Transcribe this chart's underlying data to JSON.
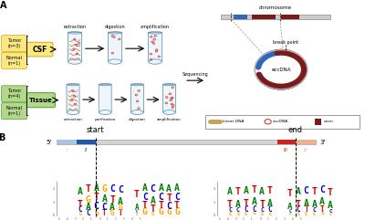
{
  "panel_A_label": "A",
  "panel_B_label": "B",
  "csf_label": "CSF",
  "tissue_label": "Tissue",
  "tumor_csf": "Tumor\n(n=3)",
  "normal_csf": "Normal\n(n=1)",
  "tumor_tissue": "Tumor\n(n=4)",
  "normal_tissue": "Normal\n(n=1)",
  "steps_csf": [
    "extraction",
    "digestion",
    "amplification"
  ],
  "steps_tissue": [
    "extraction",
    "purification",
    "digestion",
    "amplification"
  ],
  "sequencing_label": "Sequencing",
  "chromosome_label": "chromosome",
  "break_point_label": "break point",
  "eccdna_label": "eccDNA",
  "legend_items": [
    "linear DNA",
    "eccDNA",
    "exon"
  ],
  "start_label": "start",
  "end_label": "end",
  "five_prime": "5'",
  "three_prime": "3'",
  "region_I": "I",
  "region_II": "II",
  "region_III": "III",
  "region_IV": "IV",
  "csf_yellow": "#fce883",
  "csf_border": "#d4aa00",
  "tissue_green": "#b2d98a",
  "tissue_border": "#5a9930",
  "tube_fill": "#eef6fc",
  "tube_edge": "#6699bb",
  "dna_squiggle": "#cc7733",
  "dot_color_red": "#cc3333",
  "chr_blue": "#3366bb",
  "chr_darkred": "#7a1a1a",
  "chr_gray": "#cccccc",
  "exon_color": "#7a1a1a",
  "linear_dna_color": "#c8a050",
  "bar_blue_light": "#a8c4e0",
  "bar_blue_dark": "#2255aa",
  "bar_red": "#cc2222",
  "bar_peach": "#f0b090",
  "dna_A": "#008000",
  "dna_T": "#cc0000",
  "dna_G": "#ffa500",
  "dna_C": "#0000cc"
}
